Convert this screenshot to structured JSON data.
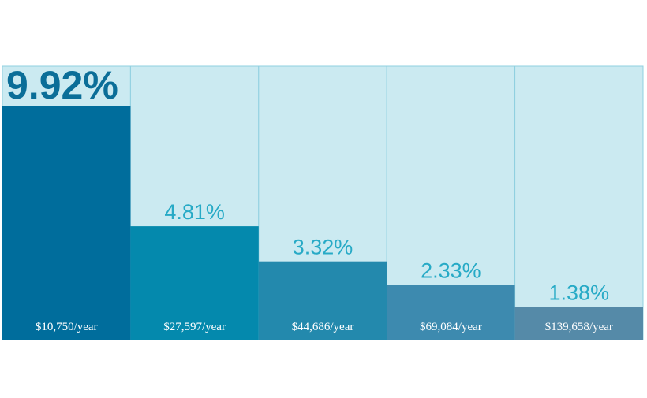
{
  "chart_data": {
    "type": "bar",
    "categories": [
      "$10,750/year",
      "$27,597/year",
      "$44,686/year",
      "$69,084/year",
      "$139,658/year"
    ],
    "values": [
      9.92,
      4.81,
      3.32,
      2.33,
      1.38
    ],
    "value_labels": [
      "9.92%",
      "4.81%",
      "3.32%",
      "2.33%",
      "1.38%"
    ],
    "ylim": [
      0,
      11.6
    ],
    "grid": false,
    "title": "",
    "xlabel": "",
    "ylabel": ""
  },
  "colors": {
    "background_panel": "#cbeaf1",
    "panel_border": "#8fd0e0",
    "bars": [
      "#006d9c",
      "#0489ad",
      "#2389ad",
      "#3d8aaf",
      "#558aa8"
    ],
    "value_label_first": "#0b6e98",
    "value_label_other": "#27aac6",
    "category_label": "#ffffff"
  }
}
